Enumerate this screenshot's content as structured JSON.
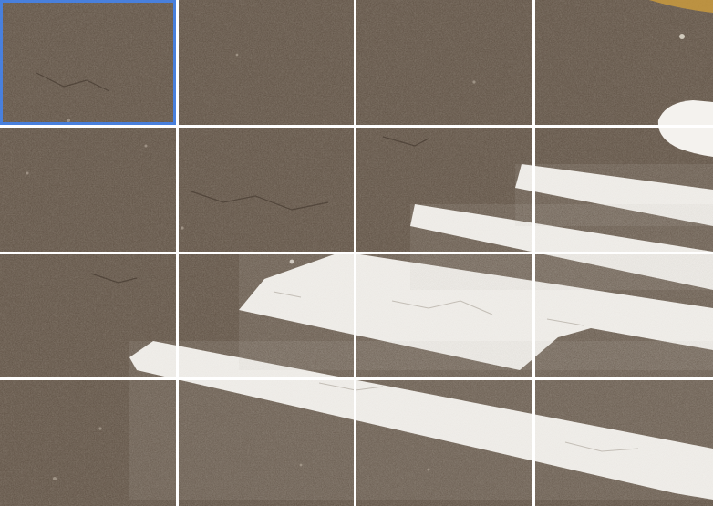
{
  "grid": {
    "rows": 4,
    "cols": 4,
    "gap_color": "#ffffff"
  },
  "scene": {
    "subject": "asphalt-road-with-white-crosswalk-stripes",
    "asphalt_color": "#5b4d40",
    "asphalt_dark": "#463a30",
    "asphalt_light": "#75675a",
    "paint_color": "#f4f2ee",
    "paint_shadow": "#d9d5cf",
    "corner_accent": "#c99a3e"
  }
}
